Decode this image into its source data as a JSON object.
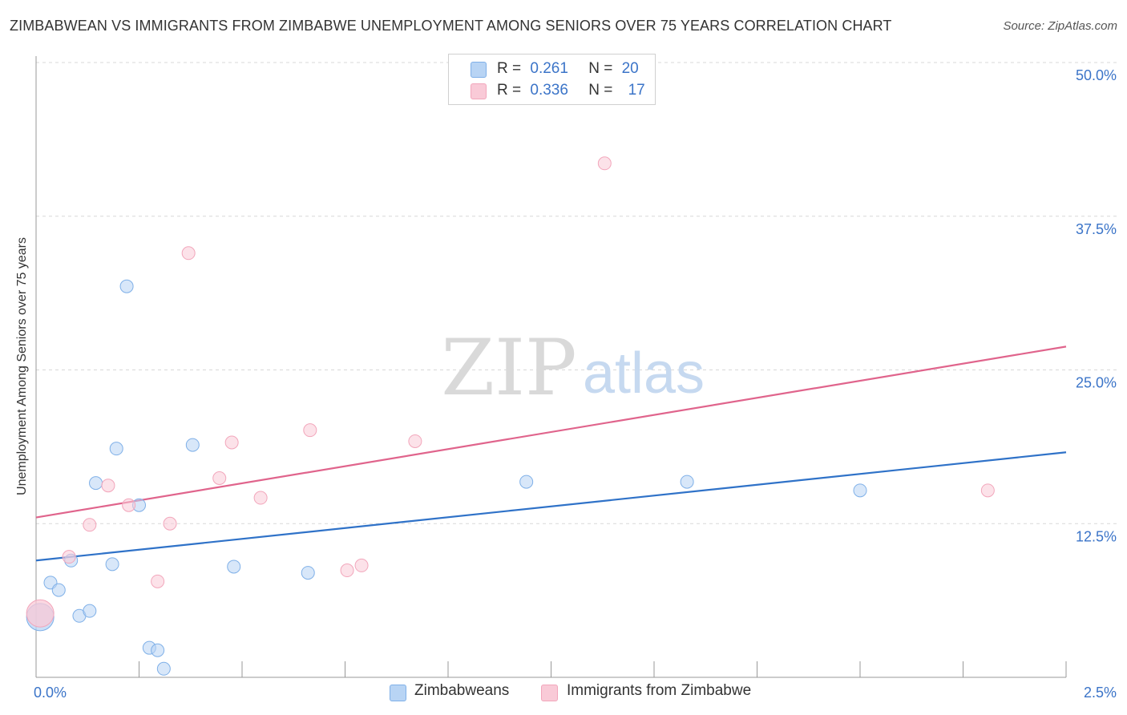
{
  "header": {
    "title": "ZIMBABWEAN VS IMMIGRANTS FROM ZIMBABWE UNEMPLOYMENT AMONG SENIORS OVER 75 YEARS CORRELATION CHART",
    "source": "Source: ZipAtlas.com"
  },
  "watermark": {
    "zip": "ZIP",
    "atlas": "atlas"
  },
  "legend": {
    "rows": [
      {
        "r_label": "R =",
        "r_value": "0.261",
        "n_label": "N =",
        "n_value": "20"
      },
      {
        "r_label": "R =",
        "r_value": "0.336",
        "n_label": "N =",
        "n_value": "17"
      }
    ]
  },
  "chart_data": {
    "type": "scatter",
    "title": "ZIMBABWEAN VS IMMIGRANTS FROM ZIMBABWE UNEMPLOYMENT AMONG SENIORS OVER 75 YEARS CORRELATION CHART",
    "xlabel": "",
    "ylabel": "Unemployment Among Seniors over 75 years",
    "xlim": [
      0,
      2.5
    ],
    "ylim": [
      0,
      50
    ],
    "x_tick_labels": [
      "0.0%",
      "2.5%"
    ],
    "y_ticks": [
      12.5,
      25.0,
      37.5,
      50.0
    ],
    "y_tick_labels": [
      "12.5%",
      "25.0%",
      "37.5%",
      "50.0%"
    ],
    "grid": true,
    "series": [
      {
        "name": "Zimbabweans",
        "color": "#7fb0e8",
        "fill": "#b8d4f4",
        "line_color": "#2f72c8",
        "r": 0.261,
        "n": 20,
        "points": [
          {
            "x": 0.01,
            "y": 4.9,
            "big": true
          },
          {
            "x": 0.035,
            "y": 7.7
          },
          {
            "x": 0.055,
            "y": 7.1
          },
          {
            "x": 0.085,
            "y": 9.5
          },
          {
            "x": 0.105,
            "y": 5.0
          },
          {
            "x": 0.13,
            "y": 5.4
          },
          {
            "x": 0.145,
            "y": 15.8
          },
          {
            "x": 0.185,
            "y": 9.2
          },
          {
            "x": 0.195,
            "y": 18.6
          },
          {
            "x": 0.22,
            "y": 31.8
          },
          {
            "x": 0.25,
            "y": 14.0
          },
          {
            "x": 0.275,
            "y": 2.4
          },
          {
            "x": 0.295,
            "y": 2.2
          },
          {
            "x": 0.31,
            "y": 0.7
          },
          {
            "x": 0.38,
            "y": 18.9
          },
          {
            "x": 0.48,
            "y": 9.0
          },
          {
            "x": 0.66,
            "y": 8.5
          },
          {
            "x": 1.19,
            "y": 15.9
          },
          {
            "x": 1.58,
            "y": 15.9
          },
          {
            "x": 2.0,
            "y": 15.2
          }
        ],
        "trend": {
          "x": [
            0,
            2.5
          ],
          "y": [
            9.5,
            18.3
          ]
        }
      },
      {
        "name": "Immigrants from Zimbabwe",
        "color": "#f2a6bb",
        "fill": "#f9cad7",
        "line_color": "#e0648c",
        "r": 0.336,
        "n": 17,
        "points": [
          {
            "x": 0.01,
            "y": 5.2,
            "big": true
          },
          {
            "x": 0.08,
            "y": 9.8
          },
          {
            "x": 0.13,
            "y": 12.4
          },
          {
            "x": 0.175,
            "y": 15.6
          },
          {
            "x": 0.225,
            "y": 14.0
          },
          {
            "x": 0.295,
            "y": 7.8
          },
          {
            "x": 0.325,
            "y": 12.5
          },
          {
            "x": 0.37,
            "y": 34.5
          },
          {
            "x": 0.445,
            "y": 16.2
          },
          {
            "x": 0.475,
            "y": 19.1
          },
          {
            "x": 0.545,
            "y": 14.6
          },
          {
            "x": 0.665,
            "y": 20.1
          },
          {
            "x": 0.755,
            "y": 8.7
          },
          {
            "x": 0.79,
            "y": 9.1
          },
          {
            "x": 0.92,
            "y": 19.2
          },
          {
            "x": 1.38,
            "y": 41.8
          },
          {
            "x": 2.31,
            "y": 15.2
          }
        ],
        "trend": {
          "x": [
            0,
            2.5
          ],
          "y": [
            13.0,
            26.9
          ]
        }
      }
    ]
  }
}
